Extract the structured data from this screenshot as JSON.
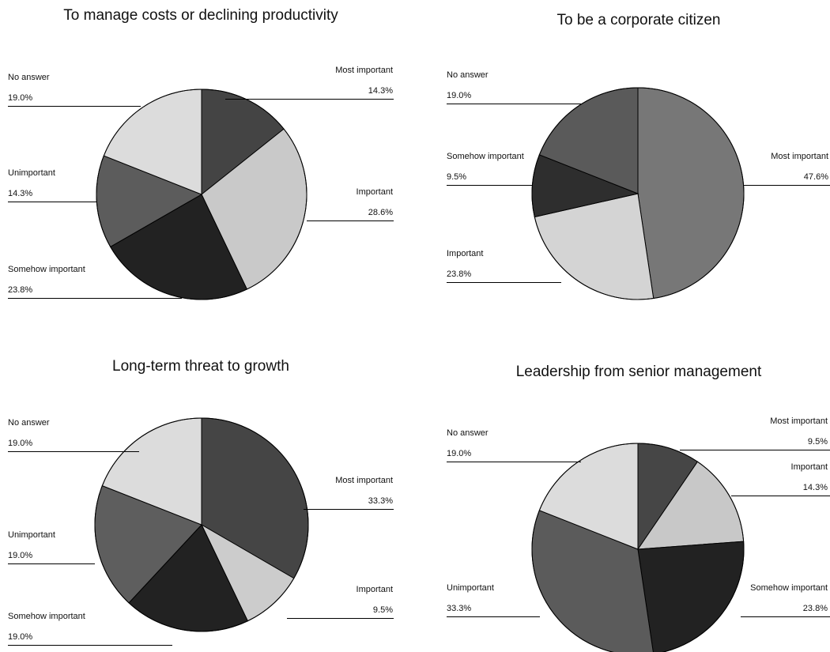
{
  "chart_data": [
    {
      "type": "pie",
      "title": "To manage costs or declining productivity",
      "slices": [
        {
          "label": "Most important",
          "value": 14.3,
          "value_text": "14.3%",
          "color": "#444444"
        },
        {
          "label": "Important",
          "value": 28.6,
          "value_text": "28.6%",
          "color": "#c9c9c9"
        },
        {
          "label": "Somehow important",
          "value": 23.8,
          "value_text": "23.8%",
          "color": "#222222"
        },
        {
          "label": "Unimportant",
          "value": 14.3,
          "value_text": "14.3%",
          "color": "#5c5c5c"
        },
        {
          "label": "No answer",
          "value": 19.0,
          "value_text": "19.0%",
          "color": "#dcdcdc"
        }
      ]
    },
    {
      "type": "pie",
      "title": "To be a corporate citizen",
      "slices": [
        {
          "label": "Most important",
          "value": 47.6,
          "value_text": "47.6%",
          "color": "#777777"
        },
        {
          "label": "Important",
          "value": 23.8,
          "value_text": "23.8%",
          "color": "#d4d4d4"
        },
        {
          "label": "Somehow important",
          "value": 9.5,
          "value_text": "9.5%",
          "color": "#2e2e2e"
        },
        {
          "label": "No answer",
          "value": 19.0,
          "value_text": "19.0%",
          "color": "#5a5a5a"
        }
      ]
    },
    {
      "type": "pie",
      "title": "Long-term threat to growth",
      "slices": [
        {
          "label": "Most important",
          "value": 33.3,
          "value_text": "33.3%",
          "color": "#454545"
        },
        {
          "label": "Important",
          "value": 9.5,
          "value_text": "9.5%",
          "color": "#cccccc"
        },
        {
          "label": "Somehow important",
          "value": 19.0,
          "value_text": "19.0%",
          "color": "#222222"
        },
        {
          "label": "Unimportant",
          "value": 19.0,
          "value_text": "19.0%",
          "color": "#5e5e5e"
        },
        {
          "label": "No answer",
          "value": 19.0,
          "value_text": "19.0%",
          "color": "#dcdcdc"
        }
      ]
    },
    {
      "type": "pie",
      "title": "Leadership from senior management",
      "slices": [
        {
          "label": "Most important",
          "value": 9.5,
          "value_text": "9.5%",
          "color": "#464646"
        },
        {
          "label": "Important",
          "value": 14.3,
          "value_text": "14.3%",
          "color": "#c8c8c8"
        },
        {
          "label": "Somehow important",
          "value": 23.8,
          "value_text": "23.8%",
          "color": "#222222"
        },
        {
          "label": "Unimportant",
          "value": 33.3,
          "value_text": "33.3%",
          "color": "#5b5b5b"
        },
        {
          "label": "No answer",
          "value": 19.0,
          "value_text": "19.0%",
          "color": "#dcdcdc"
        }
      ]
    }
  ]
}
